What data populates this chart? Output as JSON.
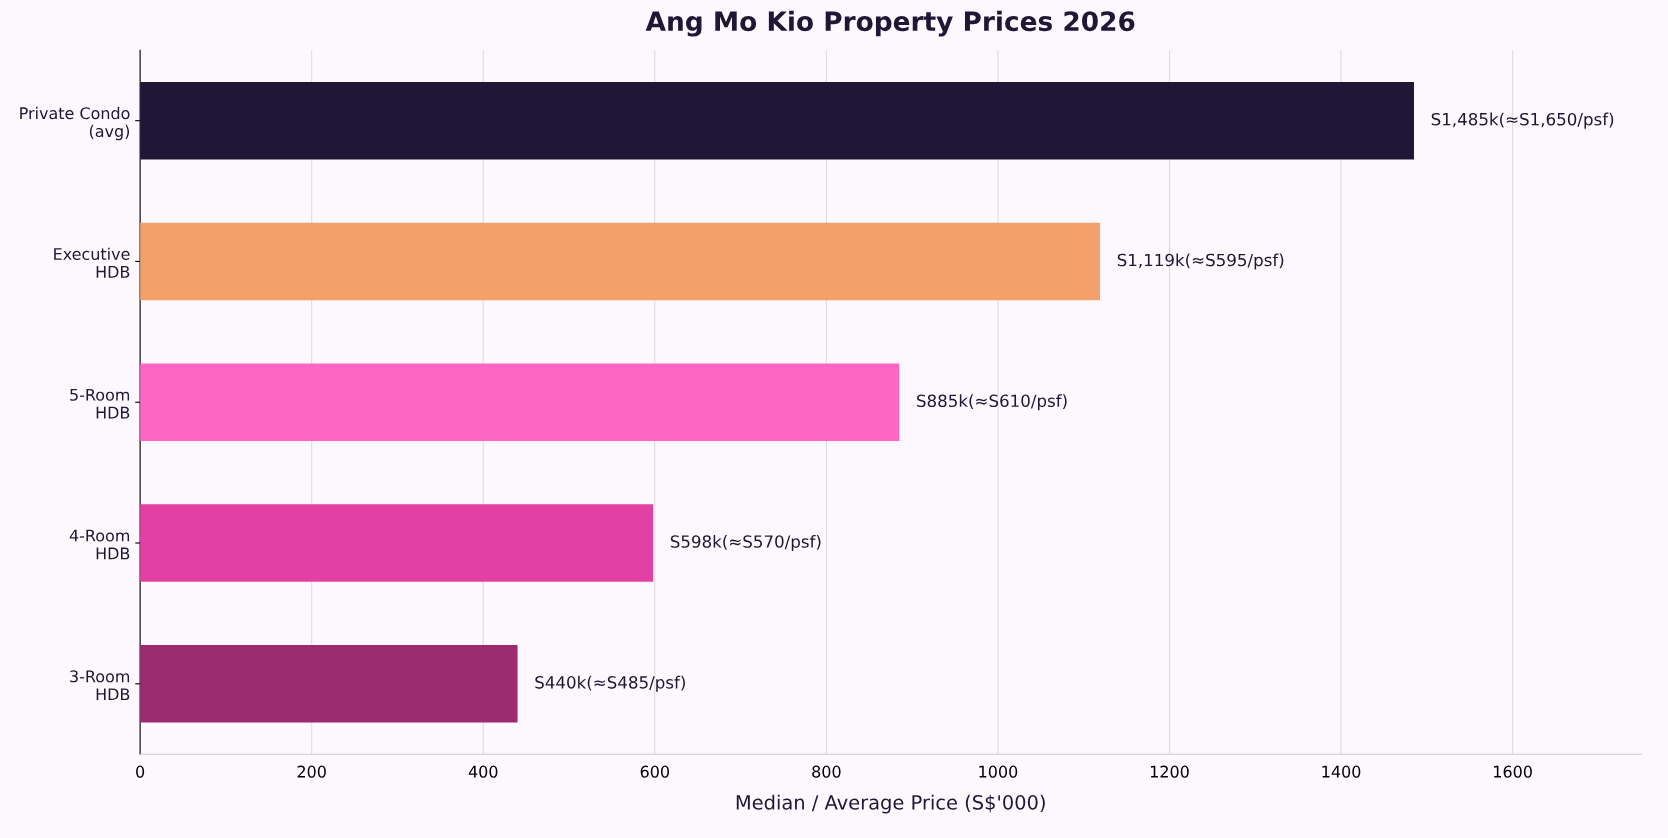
{
  "chart_data": {
    "type": "bar",
    "orientation": "horizontal",
    "title": "Ang Mo Kio Property Prices 2026",
    "xlabel": "Median / Average Price (S$'000)",
    "categories": [
      "Private Condo\n(avg)",
      "Executive\nHDB",
      "5-Room\nHDB",
      "4-Room\nHDB",
      "3-Room\nHDB"
    ],
    "values": [
      1485,
      1119,
      885,
      598,
      440
    ],
    "colors": [
      "#1e1836",
      "#f4a06c",
      "#ff66c4",
      "#e340a4",
      "#9b2b6e"
    ],
    "value_labels": [
      "S1,485k(≈S1,650/psf)",
      "S1,119k(≈S595/psf)",
      "S885k(≈S610/psf)",
      "S598k(≈S570/psf)",
      "S440k(≈S485/psf)"
    ],
    "xlim": [
      0,
      1750
    ],
    "xticks": [
      0,
      200,
      400,
      600,
      800,
      1000,
      1200,
      1400,
      1600
    ],
    "grid": "x",
    "legend": false
  }
}
